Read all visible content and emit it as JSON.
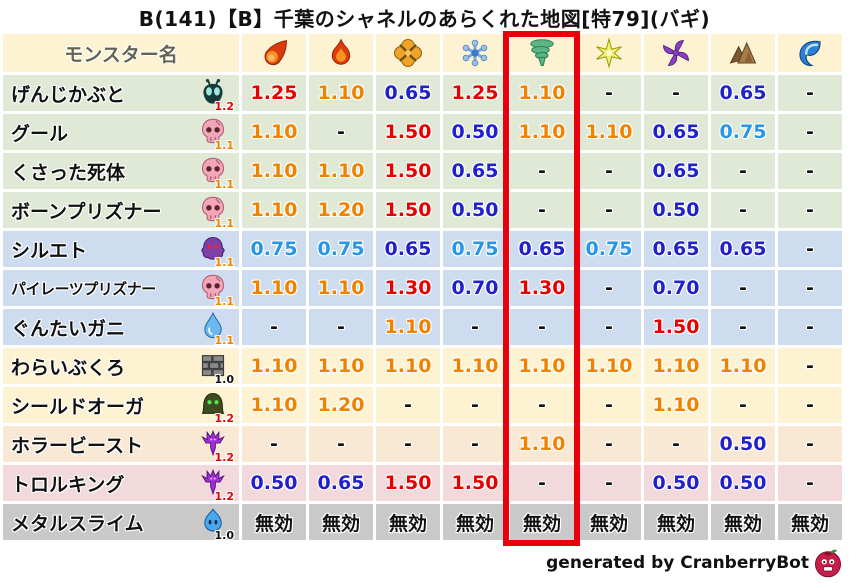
{
  "title": "B(141)【B】千葉のシャネルのあらくれた地図[特79](バギ)",
  "colors": {
    "highlight_box": "#e8000d",
    "value_red": "#e60000",
    "value_orange": "#f08200",
    "value_blue": "#2121cc",
    "value_lightblue": "#2596e8"
  },
  "table": {
    "name_header": "モンスター名",
    "columns": [
      {
        "icon": "fireball-icon"
      },
      {
        "icon": "flame-icon"
      },
      {
        "icon": "bang-icon"
      },
      {
        "icon": "snowflake-icon"
      },
      {
        "icon": "tornado-icon"
      },
      {
        "icon": "spark-icon"
      },
      {
        "icon": "pinwheel-icon"
      },
      {
        "icon": "mountain-icon"
      },
      {
        "icon": "wave-icon"
      }
    ],
    "highlighted_column_index": 4,
    "rows": [
      {
        "name": "げんじかぶと",
        "icon": "beetle-icon",
        "badge": "1.2",
        "badge_color": "red",
        "row_color": "green",
        "cells": [
          {
            "v": "1.25",
            "c": "red"
          },
          {
            "v": "1.10",
            "c": "orange"
          },
          {
            "v": "0.65",
            "c": "blue"
          },
          {
            "v": "1.25",
            "c": "red"
          },
          {
            "v": "1.10",
            "c": "orange"
          },
          {
            "v": "-",
            "c": "black"
          },
          {
            "v": "-",
            "c": "black"
          },
          {
            "v": "0.65",
            "c": "blue"
          },
          {
            "v": "-",
            "c": "black"
          }
        ]
      },
      {
        "name": "グール",
        "icon": "skull-icon",
        "badge": "1.1",
        "badge_color": "orange",
        "row_color": "green",
        "cells": [
          {
            "v": "1.10",
            "c": "orange"
          },
          {
            "v": "-",
            "c": "black"
          },
          {
            "v": "1.50",
            "c": "red"
          },
          {
            "v": "0.50",
            "c": "blue"
          },
          {
            "v": "1.10",
            "c": "orange"
          },
          {
            "v": "1.10",
            "c": "orange"
          },
          {
            "v": "0.65",
            "c": "blue"
          },
          {
            "v": "0.75",
            "c": "lightblue"
          },
          {
            "v": "-",
            "c": "black"
          }
        ]
      },
      {
        "name": "くさった死体",
        "icon": "skull-icon",
        "badge": "1.1",
        "badge_color": "orange",
        "row_color": "green",
        "cells": [
          {
            "v": "1.10",
            "c": "orange"
          },
          {
            "v": "1.10",
            "c": "orange"
          },
          {
            "v": "1.50",
            "c": "red"
          },
          {
            "v": "0.65",
            "c": "blue"
          },
          {
            "v": "-",
            "c": "black"
          },
          {
            "v": "-",
            "c": "black"
          },
          {
            "v": "0.65",
            "c": "blue"
          },
          {
            "v": "-",
            "c": "black"
          },
          {
            "v": "-",
            "c": "black"
          }
        ]
      },
      {
        "name": "ボーンプリズナー",
        "icon": "skull-icon",
        "badge": "1.1",
        "badge_color": "orange",
        "row_color": "green",
        "cells": [
          {
            "v": "1.10",
            "c": "orange"
          },
          {
            "v": "1.20",
            "c": "orange"
          },
          {
            "v": "1.50",
            "c": "red"
          },
          {
            "v": "0.50",
            "c": "blue"
          },
          {
            "v": "-",
            "c": "black"
          },
          {
            "v": "-",
            "c": "black"
          },
          {
            "v": "0.50",
            "c": "blue"
          },
          {
            "v": "-",
            "c": "black"
          },
          {
            "v": "-",
            "c": "black"
          }
        ]
      },
      {
        "name": "シルエト",
        "icon": "ghost-icon",
        "badge": "1.1",
        "badge_color": "orange",
        "row_color": "blue",
        "cells": [
          {
            "v": "0.75",
            "c": "lightblue"
          },
          {
            "v": "0.75",
            "c": "lightblue"
          },
          {
            "v": "0.65",
            "c": "blue"
          },
          {
            "v": "0.75",
            "c": "lightblue"
          },
          {
            "v": "0.65",
            "c": "blue"
          },
          {
            "v": "0.75",
            "c": "lightblue"
          },
          {
            "v": "0.65",
            "c": "blue"
          },
          {
            "v": "0.65",
            "c": "blue"
          },
          {
            "v": "-",
            "c": "black"
          }
        ]
      },
      {
        "name": "パイレーツプリズナー",
        "icon": "skull-icon",
        "badge": "1.1",
        "badge_color": "orange",
        "row_color": "blue",
        "cells": [
          {
            "v": "1.10",
            "c": "orange"
          },
          {
            "v": "1.10",
            "c": "orange"
          },
          {
            "v": "1.30",
            "c": "red"
          },
          {
            "v": "0.70",
            "c": "blue"
          },
          {
            "v": "1.30",
            "c": "red"
          },
          {
            "v": "-",
            "c": "black"
          },
          {
            "v": "0.70",
            "c": "blue"
          },
          {
            "v": "-",
            "c": "black"
          },
          {
            "v": "-",
            "c": "black"
          }
        ]
      },
      {
        "name": "ぐんたいガニ",
        "icon": "waterdrop-icon",
        "badge": "1.1",
        "badge_color": "orange",
        "row_color": "blue",
        "cells": [
          {
            "v": "-",
            "c": "black"
          },
          {
            "v": "-",
            "c": "black"
          },
          {
            "v": "1.10",
            "c": "orange"
          },
          {
            "v": "-",
            "c": "black"
          },
          {
            "v": "-",
            "c": "black"
          },
          {
            "v": "-",
            "c": "black"
          },
          {
            "v": "1.50",
            "c": "red"
          },
          {
            "v": "-",
            "c": "black"
          },
          {
            "v": "-",
            "c": "black"
          }
        ]
      },
      {
        "name": "わらいぶくろ",
        "icon": "brick-icon",
        "badge": "1.0",
        "badge_color": "black",
        "row_color": "cream",
        "cells": [
          {
            "v": "1.10",
            "c": "orange"
          },
          {
            "v": "1.10",
            "c": "orange"
          },
          {
            "v": "1.10",
            "c": "orange"
          },
          {
            "v": "1.10",
            "c": "orange"
          },
          {
            "v": "1.10",
            "c": "orange"
          },
          {
            "v": "1.10",
            "c": "orange"
          },
          {
            "v": "1.10",
            "c": "orange"
          },
          {
            "v": "1.10",
            "c": "orange"
          },
          {
            "v": "-",
            "c": "black"
          }
        ]
      },
      {
        "name": "シールドオーガ",
        "icon": "dome-icon",
        "badge": "1.2",
        "badge_color": "red",
        "row_color": "cream",
        "cells": [
          {
            "v": "1.10",
            "c": "orange"
          },
          {
            "v": "1.20",
            "c": "orange"
          },
          {
            "v": "-",
            "c": "black"
          },
          {
            "v": "-",
            "c": "black"
          },
          {
            "v": "-",
            "c": "black"
          },
          {
            "v": "-",
            "c": "black"
          },
          {
            "v": "1.10",
            "c": "orange"
          },
          {
            "v": "-",
            "c": "black"
          },
          {
            "v": "-",
            "c": "black"
          }
        ]
      },
      {
        "name": "ホラービースト",
        "icon": "trident-icon",
        "badge": "1.2",
        "badge_color": "red",
        "row_color": "peach",
        "cells": [
          {
            "v": "-",
            "c": "black"
          },
          {
            "v": "-",
            "c": "black"
          },
          {
            "v": "-",
            "c": "black"
          },
          {
            "v": "-",
            "c": "black"
          },
          {
            "v": "1.10",
            "c": "orange"
          },
          {
            "v": "-",
            "c": "black"
          },
          {
            "v": "-",
            "c": "black"
          },
          {
            "v": "0.50",
            "c": "blue"
          },
          {
            "v": "-",
            "c": "black"
          }
        ]
      },
      {
        "name": "トロルキング",
        "icon": "trident-icon",
        "badge": "1.2",
        "badge_color": "red",
        "row_color": "pink",
        "cells": [
          {
            "v": "0.50",
            "c": "blue"
          },
          {
            "v": "0.65",
            "c": "blue"
          },
          {
            "v": "1.50",
            "c": "red"
          },
          {
            "v": "1.50",
            "c": "red"
          },
          {
            "v": "-",
            "c": "black"
          },
          {
            "v": "-",
            "c": "black"
          },
          {
            "v": "0.50",
            "c": "blue"
          },
          {
            "v": "0.50",
            "c": "blue"
          },
          {
            "v": "-",
            "c": "black"
          }
        ]
      },
      {
        "name": "メタルスライム",
        "icon": "slime-icon",
        "badge": "1.0",
        "badge_color": "black",
        "row_color": "gray",
        "cells": [
          {
            "v": "無効",
            "c": "black"
          },
          {
            "v": "無効",
            "c": "black"
          },
          {
            "v": "無効",
            "c": "black"
          },
          {
            "v": "無効",
            "c": "black"
          },
          {
            "v": "無効",
            "c": "black"
          },
          {
            "v": "無効",
            "c": "black"
          },
          {
            "v": "無効",
            "c": "black"
          },
          {
            "v": "無効",
            "c": "black"
          },
          {
            "v": "無効",
            "c": "black"
          }
        ]
      }
    ]
  },
  "footer": {
    "text": "generated by CranberryBot",
    "icon": "cranberry-icon"
  }
}
